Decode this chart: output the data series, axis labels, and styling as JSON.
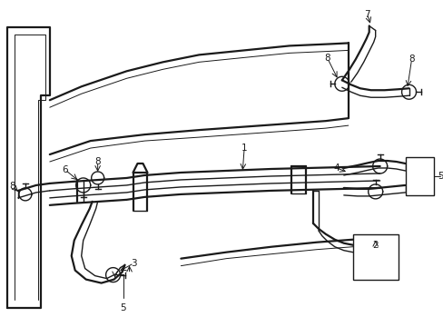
{
  "bg_color": "#ffffff",
  "line_color": "#1a1a1a",
  "fig_width": 4.89,
  "fig_height": 3.6,
  "dpi": 100,
  "lw_thick": 1.6,
  "lw_med": 1.0,
  "lw_thin": 0.7,
  "label_fs": 7.5
}
